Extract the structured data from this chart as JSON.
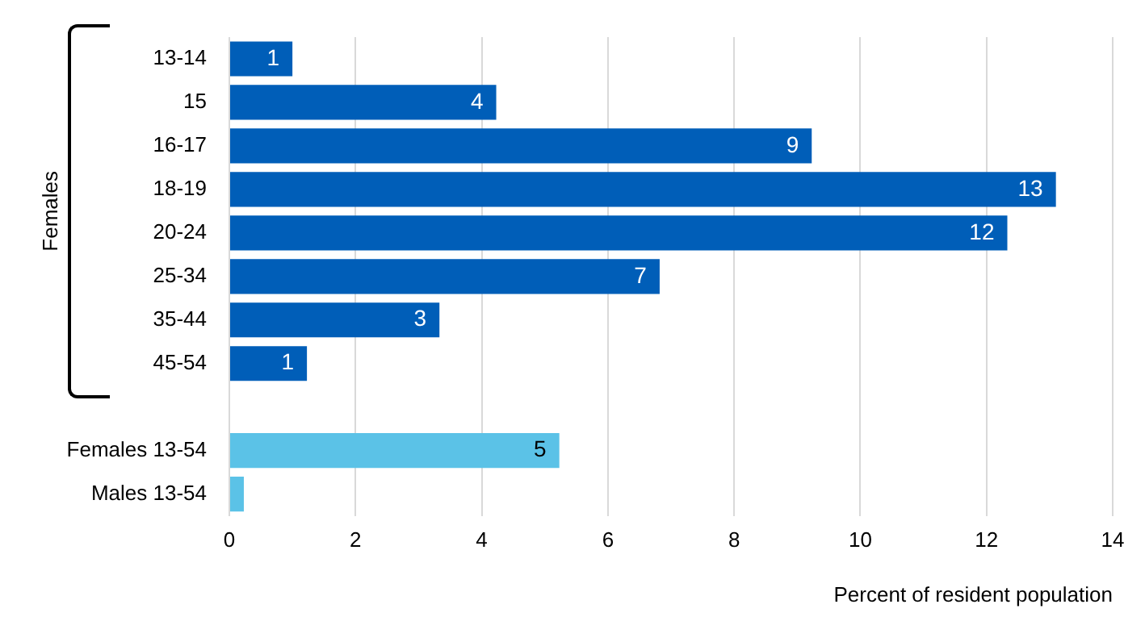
{
  "chart_data": {
    "type": "bar",
    "orientation": "horizontal",
    "categories": [
      "13-14",
      "15",
      "16-17",
      "18-19",
      "20-24",
      "25-34",
      "35-44",
      "45-54",
      null,
      "Females 13-54",
      "Males 13-54"
    ],
    "values": [
      1.0,
      4.23,
      9.23,
      13.1,
      12.33,
      6.82,
      3.33,
      1.23,
      null,
      5.23,
      0.23
    ],
    "colors": [
      "#005eb8",
      "#005eb8",
      "#005eb8",
      "#005eb8",
      "#005eb8",
      "#005eb8",
      "#005eb8",
      "#005eb8",
      null,
      "#5bc2e7",
      "#5bc2e7"
    ],
    "value_labels": [
      "1",
      "4",
      "9",
      "13",
      "12",
      "7",
      "3",
      "1",
      null,
      "5",
      null
    ],
    "xlim": [
      0,
      14
    ],
    "xticks": [
      0,
      2,
      4,
      6,
      8,
      10,
      12,
      14
    ],
    "xlabel": "Percent of resident population",
    "annotations": [
      "Females"
    ],
    "grid": "x",
    "legend": false
  }
}
